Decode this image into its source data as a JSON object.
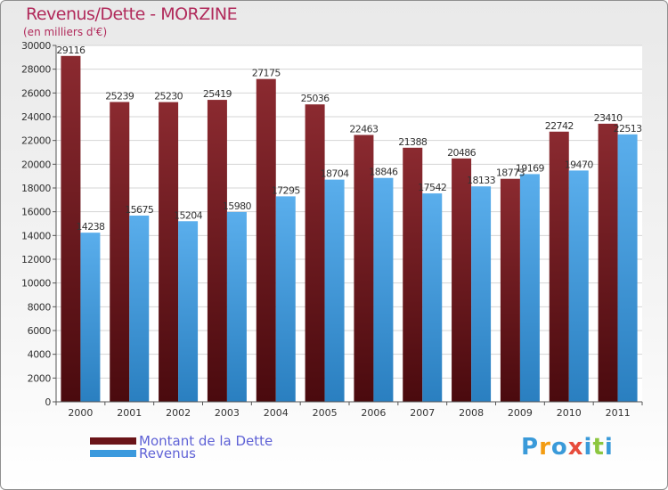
{
  "title": "Revenus/Dette - MORZINE",
  "subtitle": "(en milliers d'€)",
  "logo": {
    "parts": [
      "P",
      "r",
      "o",
      "x",
      "i",
      "t",
      "i"
    ],
    "colors": [
      "#3a9ad9",
      "#f39c12",
      "#3a9ad9",
      "#e74c3c",
      "#3a9ad9",
      "#8cc63f",
      "#3a9ad9"
    ]
  },
  "colors": {
    "dette": "#7a1e24",
    "revenus": "#3b99dd",
    "title": "#b12a5b"
  },
  "chart_data": {
    "type": "bar",
    "categories": [
      "2000",
      "2001",
      "2002",
      "2003",
      "2004",
      "2005",
      "2006",
      "2007",
      "2008",
      "2009",
      "2010",
      "2011"
    ],
    "series": [
      {
        "name": "Montant de la Dette",
        "values": [
          29116,
          25239,
          25230,
          25419,
          27175,
          25036,
          22463,
          21388,
          20486,
          18773,
          22742,
          23410
        ]
      },
      {
        "name": "Revenus",
        "values": [
          14238,
          15675,
          15204,
          15980,
          17295,
          18704,
          18846,
          17542,
          18133,
          19169,
          19470,
          22513
        ]
      }
    ],
    "yticks": [
      0,
      2000,
      4000,
      6000,
      8000,
      10000,
      12000,
      14000,
      16000,
      18000,
      20000,
      22000,
      24000,
      26000,
      28000,
      30000
    ],
    "ylim": [
      0,
      30000
    ],
    "grid": true,
    "legend": "bottom-left"
  }
}
